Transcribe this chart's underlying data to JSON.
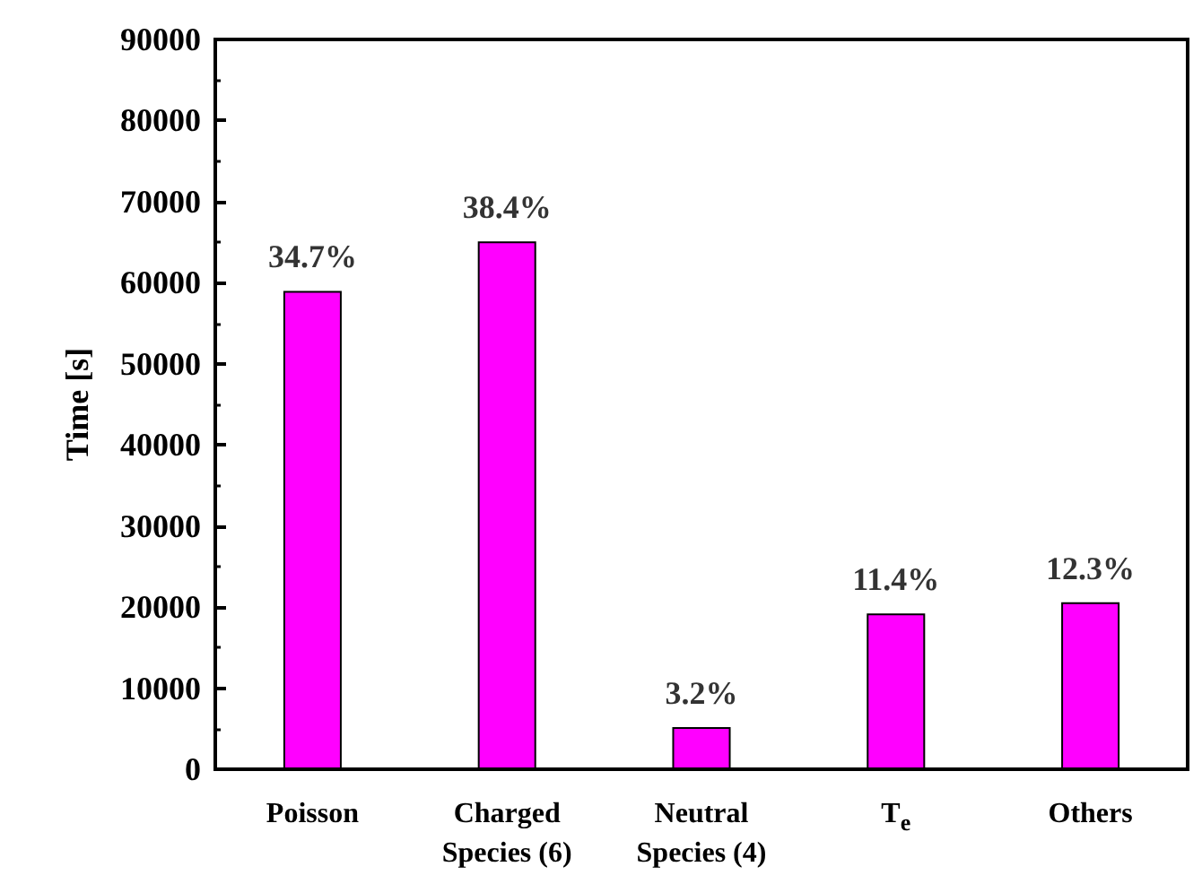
{
  "chart_data": {
    "type": "bar",
    "ylabel": "Time [s]",
    "categories": [
      "Poisson",
      "Charged\nSpecies (6)",
      "Neutral\nSpecies (4)",
      "T$_{e}$",
      "Others"
    ],
    "values": [
      59000,
      65100,
      5200,
      19200,
      20600
    ],
    "annotations": [
      {
        "text": "34.7%",
        "x": "Poisson",
        "y": 59000
      },
      {
        "text": "38.4%",
        "x": "Charged\nSpecies (6)",
        "y": 65100
      },
      {
        "text": "3.2%",
        "x": "Neutral\nSpecies (4)",
        "y": 5200
      },
      {
        "text": "11.4%",
        "x": "T$_{e}$",
        "y": 19200
      },
      {
        "text": "12.3%",
        "x": "Others",
        "y": 20600
      }
    ],
    "color": "#ff00ff",
    "ylim": [
      0,
      90000
    ],
    "yticks": [
      0,
      10000,
      20000,
      30000,
      40000,
      50000,
      60000,
      70000,
      80000,
      90000
    ],
    "grid": false
  }
}
